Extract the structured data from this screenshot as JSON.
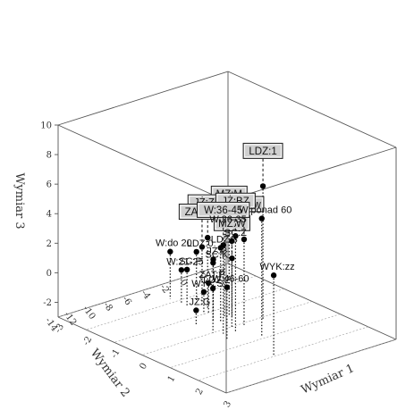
{
  "chart_data": {
    "type": "scatter3d",
    "axes": {
      "x": {
        "title": "Wymiar 1",
        "ticks": [
          -3,
          -2,
          -1,
          0,
          1,
          2,
          3
        ]
      },
      "y": {
        "title": "Wymiar 2",
        "ticks": [
          4,
          2,
          0,
          -2,
          -4,
          -6,
          -8,
          -10,
          -12,
          -14
        ]
      },
      "z": {
        "title": "Wymiar 3",
        "ticks": [
          -2,
          0,
          2,
          4,
          6,
          8,
          10
        ]
      }
    },
    "points": [
      {
        "label": "LDZ:1",
        "boxed": true,
        "x": 0.1,
        "y": -1.5,
        "z": 6.0
      },
      {
        "label": "MZ:M",
        "boxed": true,
        "x": -0.6,
        "y": -3.0,
        "z": 2.8
      },
      {
        "label": "JŻ:ZP",
        "boxed": true,
        "x": -1.2,
        "y": -3.5,
        "z": 1.8
      },
      {
        "label": "ZAT:NP",
        "boxed": true,
        "x": -1.4,
        "y": -3.5,
        "z": 1.0
      },
      {
        "label": "MZ:W",
        "boxed": true,
        "x": -0.5,
        "y": -3.0,
        "z": 0.9
      },
      {
        "label": "WYK:w",
        "boxed": true,
        "x": 0.1,
        "y": -3.5,
        "z": 2.8
      },
      {
        "label": "JŻ:BZ",
        "boxed": true,
        "x": 0.3,
        "y": -5.0,
        "z": 3.5
      },
      {
        "label": "W:36-45",
        "boxed": true,
        "x": 0.2,
        "y": -6.0,
        "z": 3.0
      },
      {
        "label": "W:ponad 60",
        "boxed": false,
        "x": 0.9,
        "y": -4.0,
        "z": 5.0
      },
      {
        "label": "W:26-35",
        "boxed": false,
        "x": -0.6,
        "y": -3.5,
        "z": 3.0
      },
      {
        "label": "SC:Z",
        "boxed": false,
        "x": 0.0,
        "y": -4.5,
        "z": 2.8
      },
      {
        "label": "LDZ:3",
        "boxed": false,
        "x": -0.4,
        "y": -4.5,
        "z": 2.0
      },
      {
        "label": "WYK:zz",
        "boxed": false,
        "x": 2.0,
        "y": -6.0,
        "z": 2.5
      },
      {
        "label": "LDZ:0",
        "boxed": false,
        "x": -1.6,
        "y": -3.5,
        "z": 0.5
      },
      {
        "label": "JŻ:P",
        "boxed": false,
        "x": -1.0,
        "y": -3.5,
        "z": 0.5
      },
      {
        "label": "W:do 20",
        "boxed": false,
        "x": -2.2,
        "y": -4.5,
        "z": 0.2
      },
      {
        "label": "ZAT:P",
        "boxed": false,
        "x": -1.0,
        "y": -4.0,
        "z": -1.0
      },
      {
        "label": "SC:K",
        "boxed": false,
        "x": -0.5,
        "y": -5.0,
        "z": 1.0
      },
      {
        "label": "SC:P",
        "boxed": false,
        "x": -1.6,
        "y": -4.5,
        "z": -0.5
      },
      {
        "label": "W:21-25",
        "boxed": false,
        "x": -1.8,
        "y": -4.5,
        "z": -0.7
      },
      {
        "label": "LDZ:2",
        "boxed": false,
        "x": 0.0,
        "y": -6.5,
        "z": 0.0
      },
      {
        "label": "W:46-60",
        "boxed": false,
        "x": 0.5,
        "y": -6.5,
        "z": 0.5
      },
      {
        "label": "WYK:S",
        "boxed": false,
        "x": -1.0,
        "y": -4.5,
        "z": -1.5
      },
      {
        "label": "JŻ:G",
        "boxed": false,
        "x": -0.6,
        "y": -6.5,
        "z": -2.0
      }
    ]
  }
}
